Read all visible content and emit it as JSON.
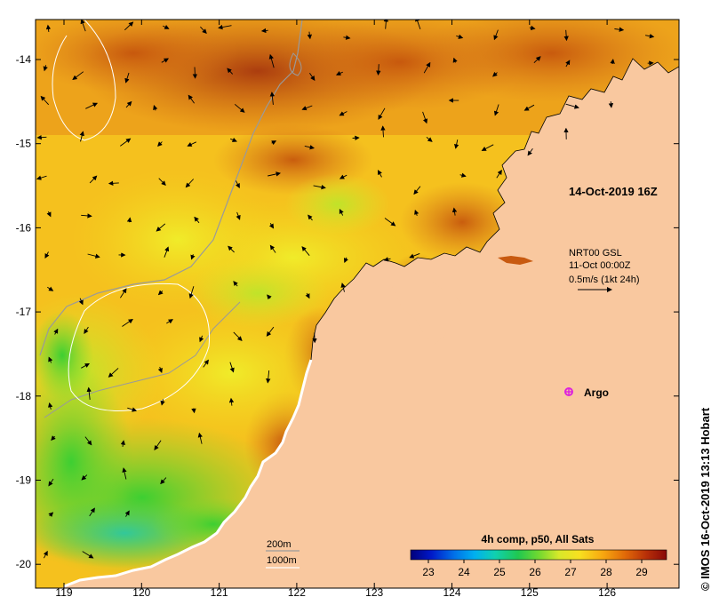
{
  "map": {
    "timestamp": "14-Oct-2019 16Z",
    "current_source": "NRT00 GSL",
    "current_time": "11-Oct 00:00Z",
    "current_scale": "0.5m/s (1kt 24h)",
    "argo_label": "Argo",
    "contour_labels": [
      "200m",
      "1000m"
    ],
    "credit": "© IMOS 16-Oct-2019 13:13 Hobart",
    "colorbar": {
      "title": "4h comp, p50, All Sats",
      "ticks": [
        "23",
        "24",
        "25",
        "26",
        "27",
        "28",
        "29"
      ],
      "min": 22.5,
      "max": 29.7
    },
    "lon_ticks": [
      "119",
      "120",
      "121",
      "122",
      "123",
      "124",
      "125",
      "126"
    ],
    "lat_ticks": [
      "-14",
      "-15",
      "-16",
      "-17",
      "-18",
      "-19",
      "-20"
    ],
    "colors": {
      "land": "#f9c89f",
      "argo": "#dd22dd",
      "isobath_200": "#9a9a9a",
      "isobath_1000": "#ffffff"
    }
  }
}
